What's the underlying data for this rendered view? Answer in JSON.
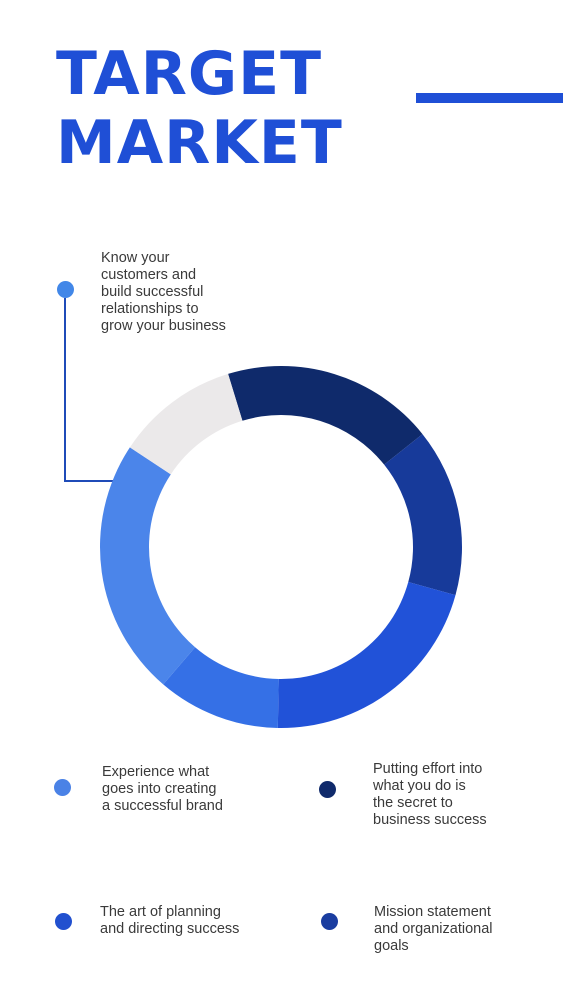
{
  "title": {
    "line1": "TARGET",
    "line2": "MARKET"
  },
  "colors": {
    "title": "#1f4fd6",
    "rule": "#1f4fd6",
    "text": "#3a3a3a",
    "connector": "#1f4bb8"
  },
  "notes": {
    "top": [
      "Know your",
      "customers and",
      "build successful",
      "relationships to",
      "grow your business"
    ],
    "left_mid": [
      "Experience what",
      "goes into creating",
      "a successful brand"
    ],
    "right_mid": [
      "Putting effort into",
      "what you do is",
      "the secret to",
      "business success"
    ],
    "left_bottom": [
      "The art of planning",
      "and directing success"
    ],
    "right_bottom": [
      "Mission statement",
      "and organizational",
      "goals"
    ]
  },
  "dots": {
    "top": "#4287e8",
    "left_mid": "#4a82e6",
    "right_mid": "#102a6b",
    "left_bottom": "#2150cf",
    "right_bottom": "#1a3da0"
  },
  "chart_data": {
    "type": "pie",
    "donut": true,
    "start_angle_deg": -17,
    "segments": [
      {
        "value": 19,
        "color": "#0f2a6b"
      },
      {
        "value": 15,
        "color": "#173a9a"
      },
      {
        "value": 21,
        "color": "#2152d8"
      },
      {
        "value": 11,
        "color": "#3570e6"
      },
      {
        "value": 23,
        "color": "#4b85ea"
      },
      {
        "value": 11,
        "color": "#ebe9ea"
      }
    ]
  }
}
